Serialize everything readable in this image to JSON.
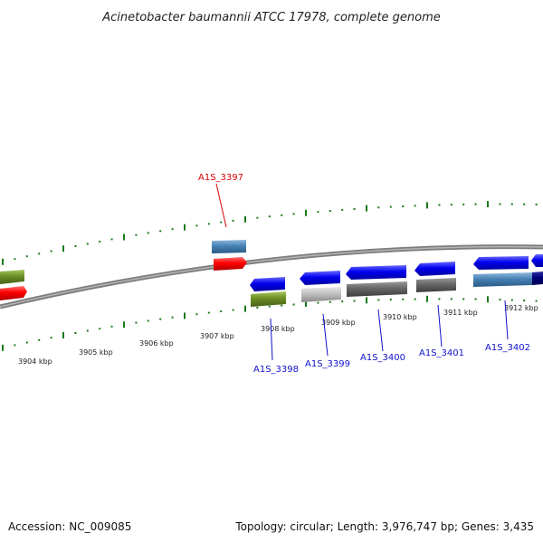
{
  "title": "Acinetobacter baumannii ATCC 17978, complete genome",
  "footer": {
    "accession": "Accession: NC_009085",
    "summary": "Topology: circular; Length: 3,976,747 bp; Genes: 3,435"
  },
  "scale_labels": [
    "3904 kbp",
    "3905 kbp",
    "3906 kbp",
    "3907 kbp",
    "3908 kbp",
    "3909 kbp",
    "3910 kbp",
    "3911 kbp",
    "3912 kbp"
  ],
  "gene_labels": [
    "A1S_3397",
    "A1S_3398",
    "A1S_3399",
    "A1S_3400",
    "A1S_3401",
    "A1S_3402"
  ],
  "colors": {
    "tick": "#1a7a1a",
    "backbone": "#8a8a8a",
    "red": "#ff0000",
    "blue": "#0000ee",
    "steelblue": "#4682b4",
    "olive": "#6b8e23",
    "lightgray": "#c0c0c0",
    "darkgray": "#666666",
    "navy": "#00007a",
    "label_red": "#dd0000",
    "label_blue": "#1010cc"
  }
}
